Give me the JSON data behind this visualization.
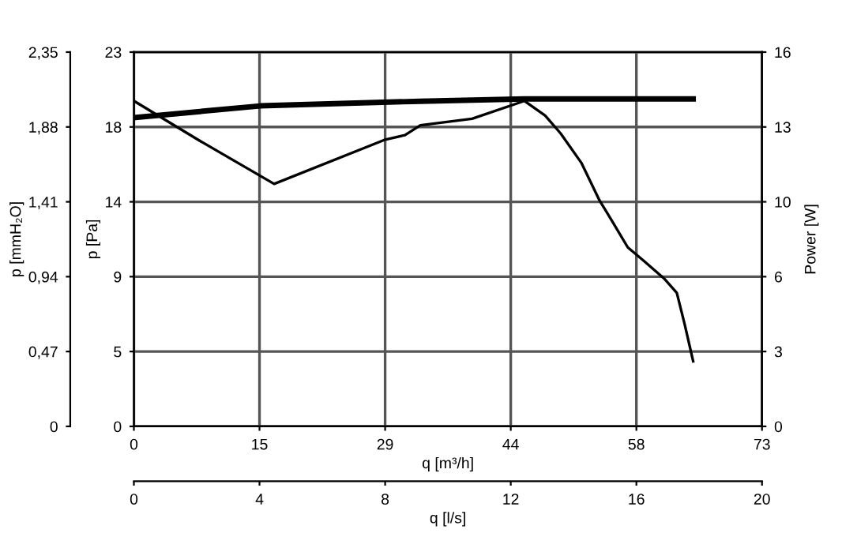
{
  "chart_data": {
    "type": "line",
    "xlabel": "q [m³/h]",
    "ylabel": "p [Pa]",
    "y2label": "Power [W]",
    "y3label": "p [mmH₂O]",
    "x2label": "q [l/s]",
    "xlim": [
      0,
      73
    ],
    "xticks": [
      0,
      {
        "value": 14.6,
        "label": "15"
      },
      {
        "value": 29.2,
        "label": "29"
      },
      {
        "value": 43.8,
        "label": "44"
      },
      {
        "value": 58.4,
        "label": "58"
      },
      73
    ],
    "ylim": [
      0,
      23
    ],
    "yticks": [
      0,
      {
        "value": 4.6,
        "label": "5"
      },
      {
        "value": 9.2,
        "label": "9"
      },
      {
        "value": 13.8,
        "label": "14"
      },
      {
        "value": 18.4,
        "label": "18"
      },
      23
    ],
    "y2lim": [
      0,
      16
    ],
    "y2ticks": [
      0,
      {
        "value": 3.2,
        "label": "3"
      },
      {
        "value": 6.4,
        "label": "6"
      },
      {
        "value": 9.6,
        "label": "10"
      },
      {
        "value": 12.8,
        "label": "13"
      },
      16
    ],
    "y3lim": [
      0,
      2.35
    ],
    "y3ticks": [
      0,
      {
        "value": 0.47,
        "label": "0,47"
      },
      {
        "value": 0.94,
        "label": "0,94"
      },
      {
        "value": 1.41,
        "label": "1,41"
      },
      {
        "value": 1.88,
        "label": "1,88"
      },
      {
        "value": 2.35,
        "label": "2,35"
      }
    ],
    "x2lim": [
      0,
      20
    ],
    "x2ticks": [
      0,
      4,
      8,
      12,
      16,
      20
    ],
    "grid": true,
    "marker": "none",
    "line_style": "solid",
    "series": [
      {
        "color": "#000000",
        "axis": "y",
        "x": [
          0,
          7.5,
          16.3,
          29.1,
          31.5,
          33.3,
          39.3,
          45.4,
          47.8,
          49.6,
          52.0,
          54.1,
          55.6,
          57.4,
          59.2,
          61.6,
          63.1,
          64.0,
          65.0
        ],
        "values": [
          20.0,
          17.6,
          14.9,
          17.6,
          17.9,
          18.5,
          18.9,
          20.0,
          19.1,
          18.0,
          16.2,
          13.9,
          12.6,
          11.0,
          10.2,
          9.1,
          8.2,
          6.3,
          4.0
        ]
      },
      {
        "color": "#000000",
        "axis": "y2",
        "x": [
          0,
          14.7,
          33.3,
          45.4,
          65.0
        ],
        "values": [
          13.2,
          13.7,
          13.9,
          14.0,
          14.0
        ]
      }
    ]
  }
}
